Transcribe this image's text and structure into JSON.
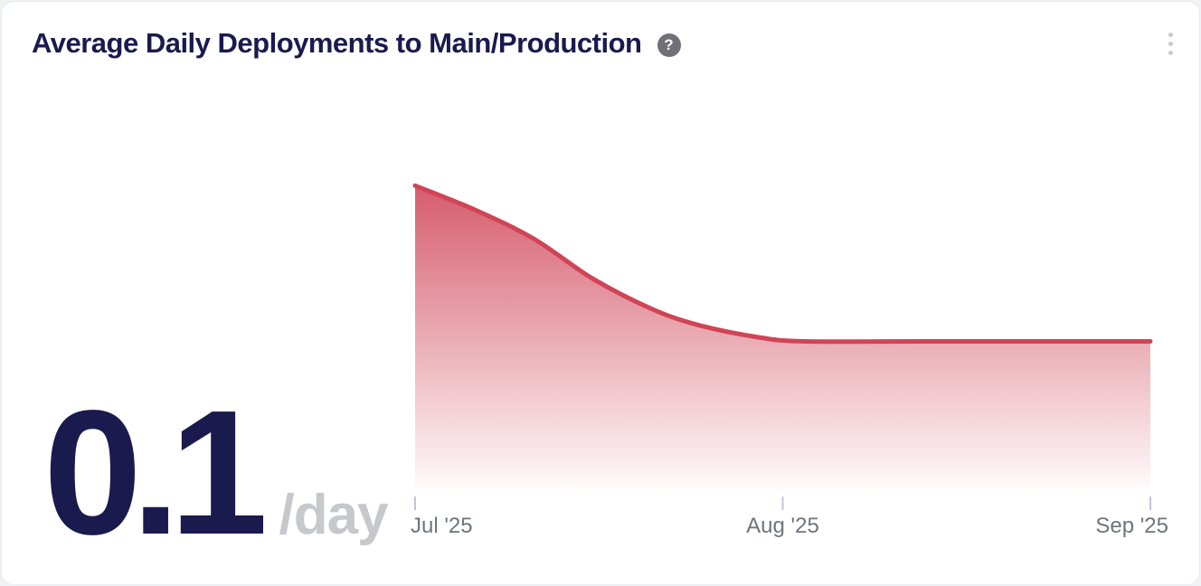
{
  "header": {
    "title": "Average Daily Deployments to Main/Production",
    "help_glyph": "?"
  },
  "metric": {
    "value": "0.1",
    "unit": "/day"
  },
  "chart_data": {
    "type": "area",
    "title": "Average Daily Deployments to Main/Production",
    "xlabel": "",
    "ylabel": "",
    "x_tick_labels": [
      "Jul '25",
      "Aug '25",
      "Sep '25"
    ],
    "y_axis_visible": false,
    "ylim": [
      0,
      0.25
    ],
    "grid": false,
    "legend": false,
    "x_encoding": "t = fraction of x-axis from Jul '25 tick to Sep '25 tick",
    "series": [
      {
        "name": "Average daily deployments",
        "color": "#d04456",
        "fill": "gradient-to-transparent",
        "points": [
          {
            "t": 0.0,
            "value": 0.197
          },
          {
            "t": 0.081,
            "value": 0.182
          },
          {
            "t": 0.161,
            "value": 0.164
          },
          {
            "t": 0.242,
            "value": 0.139
          },
          {
            "t": 0.323,
            "value": 0.12
          },
          {
            "t": 0.387,
            "value": 0.11
          },
          {
            "t": 0.468,
            "value": 0.1025
          },
          {
            "t": 0.532,
            "value": 0.1
          },
          {
            "t": 0.71,
            "value": 0.1
          },
          {
            "t": 1.0,
            "value": 0.1
          }
        ]
      }
    ]
  },
  "colors": {
    "accent_line": "#d04456",
    "title_navy": "#1a1a4e",
    "metric_navy": "#1a1a4e",
    "unit_gray": "#c7c8cc",
    "axis_label_gray": "#6f737c",
    "tick_gray": "#bdc7dd",
    "help_icon_gray": "#707076",
    "kebab_gray": "#c9c9ce",
    "card_bg": "#ffffff",
    "page_bg": "#f1f2f4",
    "card_border": "#e9eaec"
  }
}
